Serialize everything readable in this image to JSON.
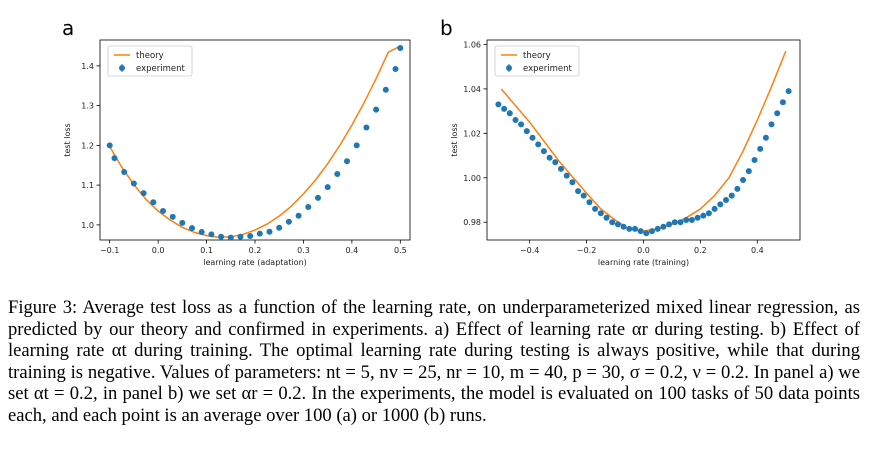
{
  "figure": {
    "panels": [
      "a",
      "b"
    ]
  },
  "caption": {
    "label": "Figure 3:",
    "text": "Average test loss as a function of the learning rate, on underparameterized mixed linear regression, as predicted by our theory and confirmed in experiments. a) Effect of learning rate αr during testing. b) Effect of learning rate αt during training. The optimal learning rate during testing is always positive, while that during training is negative. Values of parameters: nt = 5, nv = 25, nr = 10, m = 40, p = 30, σ = 0.2, ν = 0.2. In panel a) we set αt = 0.2, in panel b) we set αr = 0.2. In the experiments, the model is evaluated on 100 tasks of 50 data points each, and each point is an average over 100 (a) or 1000 (b) runs."
  },
  "colors": {
    "theory": "#ff7f0e",
    "experiment": "#1f77b4"
  },
  "chart_data": [
    {
      "type": "line",
      "panel": "a",
      "xlabel": "learning rate (adaptation)",
      "ylabel": "test loss",
      "xlim": [
        -0.12,
        0.52
      ],
      "ylim": [
        0.962,
        1.465
      ],
      "xticks": [
        -0.1,
        0.0,
        0.1,
        0.2,
        0.3,
        0.4,
        0.5
      ],
      "xticklabels": [
        "−0.1",
        "0.0",
        "0.1",
        "0.2",
        "0.3",
        "0.4",
        "0.5"
      ],
      "yticks": [
        1.0,
        1.1,
        1.2,
        1.3,
        1.4
      ],
      "yticklabels": [
        "1.0",
        "1.1",
        "1.2",
        "1.3",
        "1.4"
      ],
      "legend": {
        "placement": "top-left",
        "entries": [
          "theory",
          "experiment"
        ]
      },
      "series": [
        {
          "name": "theory",
          "kind": "line",
          "x": [
            -0.1,
            -0.075,
            -0.05,
            -0.025,
            0.0,
            0.025,
            0.05,
            0.075,
            0.1,
            0.125,
            0.15,
            0.175,
            0.2,
            0.225,
            0.25,
            0.275,
            0.3,
            0.325,
            0.35,
            0.375,
            0.4,
            0.425,
            0.45,
            0.475,
            0.5
          ],
          "y": [
            1.197,
            1.145,
            1.101,
            1.064,
            1.035,
            1.012,
            0.994,
            0.981,
            0.973,
            0.969,
            0.97,
            0.976,
            0.987,
            1.002,
            1.022,
            1.047,
            1.078,
            1.113,
            1.154,
            1.2,
            1.251,
            1.307,
            1.368,
            1.434,
            1.45
          ]
        },
        {
          "name": "experiment",
          "kind": "scatter",
          "x": [
            -0.1,
            -0.09,
            -0.07,
            -0.05,
            -0.03,
            -0.01,
            0.01,
            0.03,
            0.05,
            0.07,
            0.09,
            0.11,
            0.13,
            0.15,
            0.17,
            0.19,
            0.21,
            0.23,
            0.25,
            0.27,
            0.29,
            0.31,
            0.33,
            0.35,
            0.37,
            0.39,
            0.41,
            0.43,
            0.45,
            0.47,
            0.49,
            0.5
          ],
          "y": [
            1.2,
            1.168,
            1.133,
            1.104,
            1.08,
            1.057,
            1.035,
            1.02,
            1.005,
            0.992,
            0.982,
            0.976,
            0.97,
            0.968,
            0.97,
            0.972,
            0.978,
            0.983,
            0.993,
            1.008,
            1.023,
            1.045,
            1.068,
            1.095,
            1.128,
            1.16,
            1.2,
            1.245,
            1.29,
            1.34,
            1.392,
            1.445
          ]
        }
      ]
    },
    {
      "type": "line",
      "panel": "b",
      "xlabel": "learning rate (training)",
      "ylabel": "test loss",
      "xlim": [
        -0.55,
        0.55
      ],
      "ylim": [
        0.972,
        1.062
      ],
      "xticks": [
        -0.4,
        -0.2,
        0.0,
        0.2,
        0.4
      ],
      "xticklabels": [
        "−0.4",
        "−0.2",
        "0.0",
        "0.2",
        "0.4"
      ],
      "yticks": [
        0.98,
        1.0,
        1.02,
        1.04,
        1.06
      ],
      "yticklabels": [
        "0.98",
        "1.00",
        "1.02",
        "1.04",
        "1.06"
      ],
      "legend": {
        "placement": "top-left",
        "entries": [
          "theory",
          "experiment"
        ]
      },
      "series": [
        {
          "name": "theory",
          "kind": "line",
          "x": [
            -0.5,
            -0.4,
            -0.3,
            -0.2,
            -0.15,
            -0.1,
            -0.05,
            0.0,
            0.05,
            0.1,
            0.15,
            0.2,
            0.25,
            0.3,
            0.35,
            0.4,
            0.45,
            0.5
          ],
          "y": [
            1.04,
            1.025,
            1.008,
            0.993,
            0.986,
            0.981,
            0.977,
            0.976,
            0.977,
            0.979,
            0.982,
            0.986,
            0.992,
            1.0,
            1.012,
            1.026,
            1.041,
            1.057
          ]
        },
        {
          "name": "experiment",
          "kind": "scatter",
          "x": [
            -0.51,
            -0.49,
            -0.47,
            -0.45,
            -0.43,
            -0.41,
            -0.39,
            -0.37,
            -0.35,
            -0.33,
            -0.31,
            -0.29,
            -0.27,
            -0.25,
            -0.23,
            -0.21,
            -0.19,
            -0.17,
            -0.15,
            -0.13,
            -0.11,
            -0.09,
            -0.07,
            -0.05,
            -0.03,
            -0.01,
            0.01,
            0.03,
            0.05,
            0.07,
            0.09,
            0.11,
            0.13,
            0.15,
            0.17,
            0.19,
            0.21,
            0.23,
            0.25,
            0.27,
            0.29,
            0.31,
            0.33,
            0.35,
            0.37,
            0.39,
            0.41,
            0.43,
            0.45,
            0.47,
            0.49,
            0.51
          ],
          "y": [
            1.033,
            1.031,
            1.029,
            1.026,
            1.024,
            1.021,
            1.018,
            1.015,
            1.012,
            1.009,
            1.007,
            1.004,
            1.001,
            0.998,
            0.994,
            0.992,
            0.989,
            0.986,
            0.984,
            0.982,
            0.98,
            0.979,
            0.978,
            0.977,
            0.977,
            0.976,
            0.975,
            0.976,
            0.977,
            0.978,
            0.979,
            0.98,
            0.98,
            0.981,
            0.981,
            0.982,
            0.983,
            0.984,
            0.986,
            0.988,
            0.99,
            0.992,
            0.995,
            0.999,
            1.003,
            1.008,
            1.013,
            1.018,
            1.024,
            1.029,
            1.034,
            1.039
          ]
        }
      ]
    }
  ]
}
